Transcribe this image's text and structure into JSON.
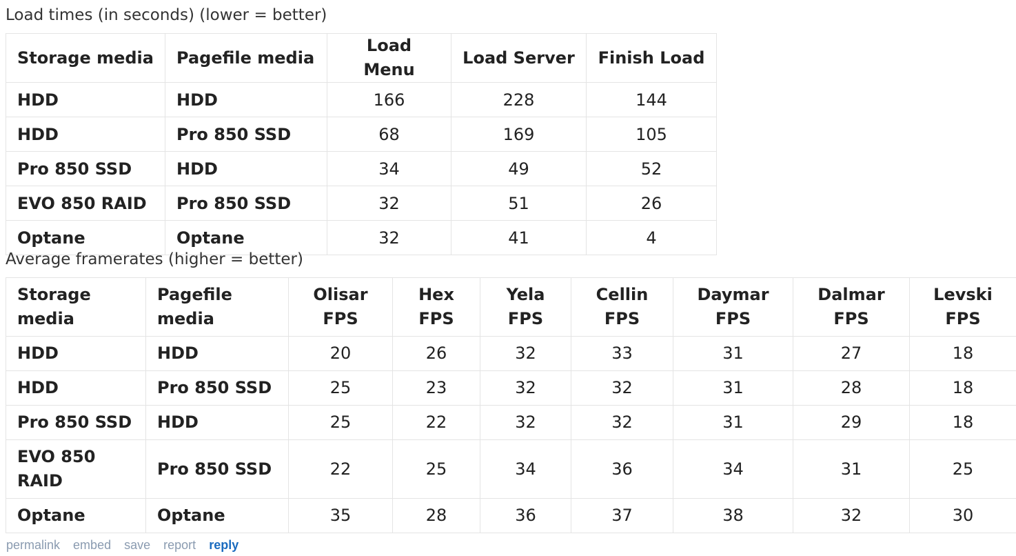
{
  "load_title": "Load times (in seconds) (lower = better)",
  "load_table": {
    "headers": [
      "Storage media",
      "Pagefile media",
      "Load Menu",
      "Load Server",
      "Finish Load"
    ],
    "rows": [
      [
        "HDD",
        "HDD",
        "166",
        "228",
        "144"
      ],
      [
        "HDD",
        "Pro 850 SSD",
        "68",
        "169",
        "105"
      ],
      [
        "Pro 850 SSD",
        "HDD",
        "34",
        "49",
        "52"
      ],
      [
        "EVO 850 RAID",
        "Pro 850 SSD",
        "32",
        "51",
        "26"
      ],
      [
        "Optane",
        "Optane",
        "32",
        "41",
        "4"
      ]
    ]
  },
  "fps_title": "Average framerates (higher = better)",
  "fps_table": {
    "headers": [
      [
        "Storage",
        "media"
      ],
      [
        "Pagefile",
        "media"
      ],
      [
        "Olisar",
        "FPS"
      ],
      [
        "Hex",
        "FPS"
      ],
      [
        "Yela",
        "FPS"
      ],
      [
        "Cellin",
        "FPS"
      ],
      [
        "Daymar",
        "FPS"
      ],
      [
        "Dalmar",
        "FPS"
      ],
      [
        "Levski",
        "FPS"
      ]
    ],
    "rows": [
      [
        [
          "HDD"
        ],
        "HDD",
        "20",
        "26",
        "32",
        "33",
        "31",
        "27",
        "18"
      ],
      [
        [
          "HDD"
        ],
        "Pro 850 SSD",
        "25",
        "23",
        "32",
        "32",
        "31",
        "28",
        "18"
      ],
      [
        [
          "Pro 850 SSD"
        ],
        "HDD",
        "25",
        "22",
        "32",
        "32",
        "31",
        "29",
        "18"
      ],
      [
        [
          "EVO 850",
          "RAID"
        ],
        "Pro 850 SSD",
        "22",
        "25",
        "34",
        "36",
        "34",
        "31",
        "25"
      ],
      [
        [
          "Optane"
        ],
        "Optane",
        "35",
        "28",
        "36",
        "37",
        "38",
        "32",
        "30"
      ]
    ]
  },
  "footer": {
    "permalink": "permalink",
    "embed": "embed",
    "save": "save",
    "report": "report",
    "reply": "reply"
  }
}
